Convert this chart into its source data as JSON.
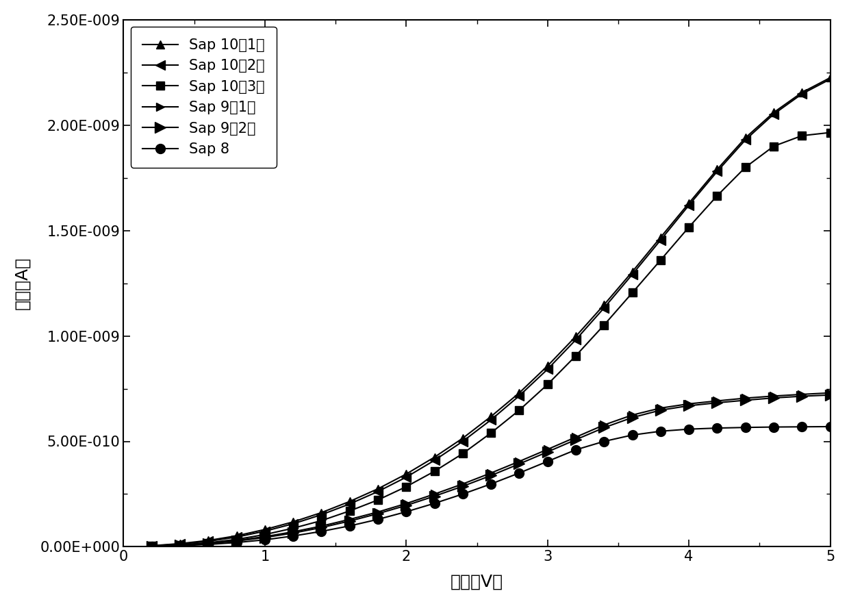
{
  "xlabel": "电压（V）",
  "ylabel": "电流（A）",
  "xlim": [
    0,
    5
  ],
  "ylim": [
    0,
    2.5e-09
  ],
  "background_color": "#ffffff",
  "series": [
    {
      "label": "Sap 10（1）",
      "marker": "^",
      "markersize": 9,
      "x": [
        0.2,
        0.4,
        0.6,
        0.8,
        1.0,
        1.2,
        1.4,
        1.6,
        1.8,
        2.0,
        2.2,
        2.4,
        2.6,
        2.8,
        3.0,
        3.2,
        3.4,
        3.6,
        3.8,
        4.0,
        4.2,
        4.4,
        4.6,
        4.8,
        5.0
      ],
      "y": [
        5e-12,
        1.5e-11,
        3e-11,
        5.2e-11,
        8.2e-11,
        1.18e-10,
        1.62e-10,
        2.15e-10,
        2.75e-10,
        3.45e-10,
        4.25e-10,
        5.15e-10,
        6.18e-10,
        7.3e-10,
        8.58e-10,
        9.98e-10,
        1.148e-09,
        1.305e-09,
        1.468e-09,
        1.63e-09,
        1.79e-09,
        1.94e-09,
        2.06e-09,
        2.155e-09,
        2.225e-09
      ]
    },
    {
      "label": "Sap 10（2）",
      "marker": "<",
      "markersize": 10,
      "x": [
        0.2,
        0.4,
        0.6,
        0.8,
        1.0,
        1.2,
        1.4,
        1.6,
        1.8,
        2.0,
        2.2,
        2.4,
        2.6,
        2.8,
        3.0,
        3.2,
        3.4,
        3.6,
        3.8,
        4.0,
        4.2,
        4.4,
        4.6,
        4.8,
        5.0
      ],
      "y": [
        4e-12,
        1.3e-11,
        2.6e-11,
        4.6e-11,
        7.4e-11,
        1.09e-10,
        1.52e-10,
        2.03e-10,
        2.62e-10,
        3.3e-10,
        4.1e-10,
        5e-10,
        6.02e-10,
        7.16e-10,
        8.42e-10,
        9.82e-10,
        1.133e-09,
        1.292e-09,
        1.455e-09,
        1.62e-09,
        1.78e-09,
        1.93e-09,
        2.052e-09,
        2.148e-09,
        2.218e-09
      ]
    },
    {
      "label": "Sap 10（3）",
      "marker": "s",
      "markersize": 8,
      "x": [
        0.2,
        0.4,
        0.6,
        0.8,
        1.0,
        1.2,
        1.4,
        1.6,
        1.8,
        2.0,
        2.2,
        2.4,
        2.6,
        2.8,
        3.0,
        3.2,
        3.4,
        3.6,
        3.8,
        4.0,
        4.2,
        4.4,
        4.6,
        4.8,
        5.0
      ],
      "y": [
        3e-12,
        9e-12,
        1.9e-11,
        3.5e-11,
        5.8e-11,
        8.8e-11,
        1.24e-10,
        1.7e-10,
        2.22e-10,
        2.85e-10,
        3.58e-10,
        4.42e-10,
        5.4e-10,
        6.48e-10,
        7.7e-10,
        9.06e-10,
        1.052e-09,
        1.205e-09,
        1.36e-09,
        1.516e-09,
        1.665e-09,
        1.8e-09,
        1.9e-09,
        1.95e-09,
        1.965e-09
      ]
    },
    {
      "label": "Sap 9（1）",
      "marker": ">",
      "markersize": 9,
      "x": [
        0.2,
        0.4,
        0.6,
        0.8,
        1.0,
        1.2,
        1.4,
        1.6,
        1.8,
        2.0,
        2.2,
        2.4,
        2.6,
        2.8,
        3.0,
        3.2,
        3.4,
        3.6,
        3.8,
        4.0,
        4.2,
        4.4,
        4.6,
        4.8,
        5.0
      ],
      "y": [
        3e-12,
        8e-12,
        1.7e-11,
        3e-11,
        4.8e-11,
        7.1e-11,
        9.8e-11,
        1.3e-10,
        1.65e-10,
        2.05e-10,
        2.5e-10,
        2.98e-10,
        3.5e-10,
        4.05e-10,
        4.62e-10,
        5.2e-10,
        5.78e-10,
        6.25e-10,
        6.58e-10,
        6.78e-10,
        6.92e-10,
        7.05e-10,
        7.15e-10,
        7.23e-10,
        7.3e-10
      ]
    },
    {
      "label": "Sap 9（2）",
      "marker": ">",
      "markersize": 11,
      "x": [
        0.2,
        0.4,
        0.6,
        0.8,
        1.0,
        1.2,
        1.4,
        1.6,
        1.8,
        2.0,
        2.2,
        2.4,
        2.6,
        2.8,
        3.0,
        3.2,
        3.4,
        3.6,
        3.8,
        4.0,
        4.2,
        4.4,
        4.6,
        4.8,
        5.0
      ],
      "y": [
        2e-12,
        7e-12,
        1.5e-11,
        2.7e-11,
        4.4e-11,
        6.5e-11,
        9.1e-11,
        1.22e-10,
        1.57e-10,
        1.96e-10,
        2.4e-10,
        2.87e-10,
        3.38e-10,
        3.93e-10,
        4.5e-10,
        5.08e-10,
        5.65e-10,
        6.13e-10,
        6.48e-10,
        6.69e-10,
        6.83e-10,
        6.95e-10,
        7.06e-10,
        7.14e-10,
        7.2e-10
      ]
    },
    {
      "label": "Sap 8",
      "marker": "o",
      "markersize": 10,
      "x": [
        0.2,
        0.4,
        0.6,
        0.8,
        1.0,
        1.2,
        1.4,
        1.6,
        1.8,
        2.0,
        2.2,
        2.4,
        2.6,
        2.8,
        3.0,
        3.2,
        3.4,
        3.6,
        3.8,
        4.0,
        4.2,
        4.4,
        4.6,
        4.8,
        5.0
      ],
      "y": [
        2e-12,
        5e-12,
        1.1e-11,
        2e-11,
        3.3e-11,
        5.1e-11,
        7.3e-11,
        9.9e-11,
        1.3e-10,
        1.66e-10,
        2.06e-10,
        2.5e-10,
        2.98e-10,
        3.5e-10,
        4.05e-10,
        4.6e-10,
        5e-10,
        5.3e-10,
        5.48e-10,
        5.58e-10,
        5.63e-10,
        5.66e-10,
        5.68e-10,
        5.69e-10,
        5.7e-10
      ]
    }
  ],
  "xticks": [
    0,
    1,
    2,
    3,
    4,
    5
  ],
  "ytick_labels": [
    "0.00E+000",
    "5.00E-010",
    "1.00E-009",
    "1.50E-009",
    "2.00E-009",
    "2.50E-009"
  ],
  "ytick_values": [
    0,
    5e-10,
    1e-09,
    1.5e-09,
    2e-09,
    2.5e-09
  ],
  "line_color": "#000000",
  "marker_color": "#000000",
  "linewidth": 1.5,
  "legend_fontsize": 15,
  "axis_fontsize": 18,
  "tick_fontsize": 15
}
